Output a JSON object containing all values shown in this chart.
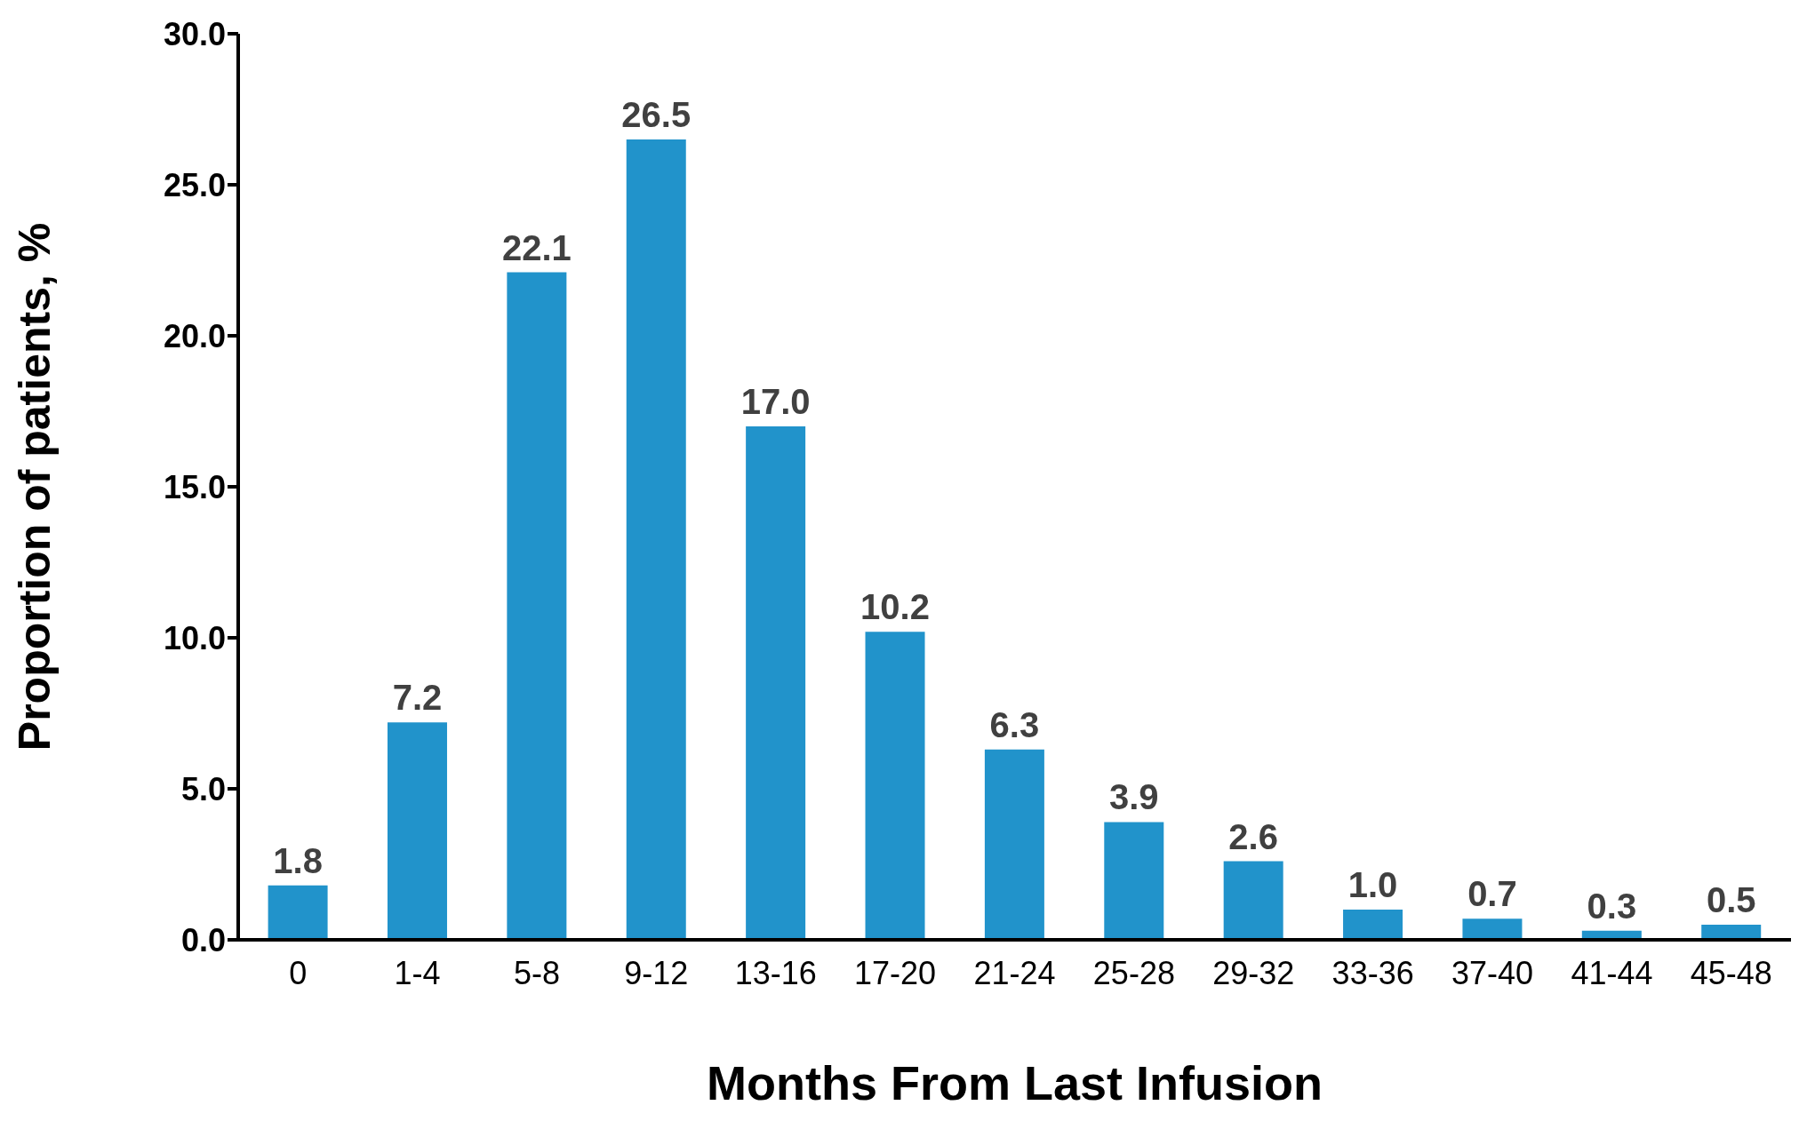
{
  "chart_data": {
    "type": "bar",
    "xlabel": "Months From Last Infusion",
    "ylabel": "Proportion of patients, %",
    "categories": [
      "0",
      "1-4",
      "5-8",
      "9-12",
      "13-16",
      "17-20",
      "21-24",
      "25-28",
      "29-32",
      "33-36",
      "37-40",
      "41-44",
      "45-48"
    ],
    "values": [
      1.8,
      7.2,
      22.1,
      26.5,
      17.0,
      10.2,
      6.3,
      3.9,
      2.6,
      1.0,
      0.7,
      0.3,
      0.5
    ],
    "value_labels": [
      "1.8",
      "7.2",
      "22.1",
      "26.5",
      "17.0",
      "10.2",
      "6.3",
      "3.9",
      "2.6",
      "1.0",
      "0.7",
      "0.3",
      "0.5"
    ],
    "color": "#2193cb",
    "ylim": [
      0,
      30
    ],
    "yticks": [
      {
        "value": 0,
        "label": "0.0"
      },
      {
        "value": 5,
        "label": "5.0"
      },
      {
        "value": 10,
        "label": "10.0"
      },
      {
        "value": 15,
        "label": "15.0"
      },
      {
        "value": 20,
        "label": "20.0"
      },
      {
        "value": 25,
        "label": "25.0"
      },
      {
        "value": 30,
        "label": "30.0"
      }
    ]
  }
}
